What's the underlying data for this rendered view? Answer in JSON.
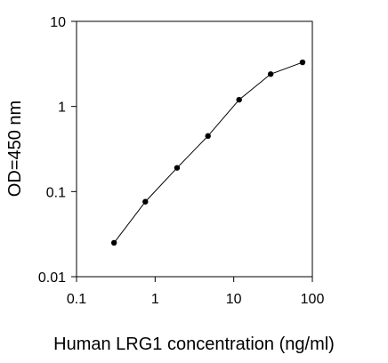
{
  "chart_data": {
    "type": "line",
    "title": "",
    "xlabel": "Human LRG1 concentration (ng/ml)",
    "ylabel": "OD=450 nm",
    "x_scale": "log",
    "y_scale": "log",
    "xlim": [
      0.1,
      100
    ],
    "ylim": [
      0.01,
      10
    ],
    "x_ticks": [
      0.1,
      1,
      10,
      100
    ],
    "x_tick_labels": [
      "0.1",
      "1",
      "10",
      "100"
    ],
    "y_ticks": [
      0.01,
      0.1,
      1,
      10
    ],
    "y_tick_labels": [
      "0.01",
      "0.1",
      "1",
      "10"
    ],
    "grid": false,
    "legend": "none",
    "series": [
      {
        "x": [
          0.3,
          0.75,
          1.9,
          4.7,
          11.7,
          29.5,
          75
        ],
        "y": [
          0.025,
          0.076,
          0.19,
          0.45,
          1.2,
          2.4,
          3.3
        ],
        "color": "#000000",
        "marker": "circle"
      }
    ]
  }
}
